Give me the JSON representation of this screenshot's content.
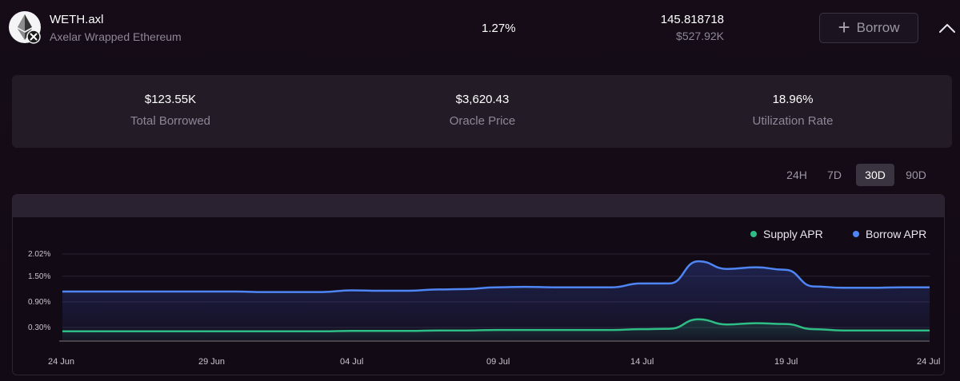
{
  "asset": {
    "symbol": "WETH.axl",
    "name": "Axelar Wrapped Ethereum",
    "apr": "1.27%",
    "liquidity_amount": "145.818718",
    "liquidity_usd": "$527.92K",
    "borrow_label": "Borrow",
    "icons": {
      "logo": "ethereum-logo-icon",
      "badge": "axelar-badge-icon",
      "plus": "plus-icon",
      "collapse": "chevron-up-icon"
    }
  },
  "stats": [
    {
      "value": "$123.55K",
      "label": "Total Borrowed"
    },
    {
      "value": "$3,620.43",
      "label": "Oracle Price"
    },
    {
      "value": "18.96%",
      "label": "Utilization Rate"
    }
  ],
  "ranges": {
    "options": [
      "24H",
      "7D",
      "30D",
      "90D"
    ],
    "selected": "30D"
  },
  "chart_data": {
    "type": "line",
    "title": "",
    "xlabel": "",
    "ylabel": "",
    "x_ticks": [
      "24 Jun",
      "29 Jun",
      "04 Jul",
      "09 Jul",
      "14 Jul",
      "19 Jul",
      "24 Jul"
    ],
    "y_ticks": [
      "0.30%",
      "0.90%",
      "1.50%",
      "2.02%"
    ],
    "ylim": [
      0,
      2.02
    ],
    "legend": "top-right",
    "grid": true,
    "x": [
      "24 Jun",
      "25 Jun",
      "26 Jun",
      "27 Jun",
      "28 Jun",
      "29 Jun",
      "30 Jun",
      "01 Jul",
      "02 Jul",
      "03 Jul",
      "04 Jul",
      "05 Jul",
      "06 Jul",
      "07 Jul",
      "08 Jul",
      "09 Jul",
      "10 Jul",
      "11 Jul",
      "12 Jul",
      "13 Jul",
      "14 Jul",
      "15 Jul",
      "16 Jul",
      "17 Jul",
      "18 Jul",
      "19 Jul",
      "20 Jul",
      "21 Jul",
      "22 Jul",
      "23 Jul",
      "24 Jul"
    ],
    "series": [
      {
        "name": "Supply APR",
        "color": "#2ebd85",
        "values": [
          0.21,
          0.21,
          0.21,
          0.21,
          0.21,
          0.21,
          0.21,
          0.21,
          0.21,
          0.21,
          0.22,
          0.22,
          0.22,
          0.23,
          0.23,
          0.24,
          0.24,
          0.24,
          0.24,
          0.24,
          0.26,
          0.27,
          0.49,
          0.37,
          0.4,
          0.38,
          0.26,
          0.23,
          0.23,
          0.23,
          0.23
        ]
      },
      {
        "name": "Borrow APR",
        "color": "#4e86f5",
        "values": [
          1.14,
          1.14,
          1.14,
          1.14,
          1.14,
          1.14,
          1.14,
          1.13,
          1.13,
          1.13,
          1.17,
          1.16,
          1.16,
          1.19,
          1.2,
          1.24,
          1.25,
          1.24,
          1.24,
          1.24,
          1.33,
          1.33,
          1.85,
          1.67,
          1.71,
          1.65,
          1.26,
          1.23,
          1.23,
          1.24,
          1.24
        ]
      }
    ]
  }
}
